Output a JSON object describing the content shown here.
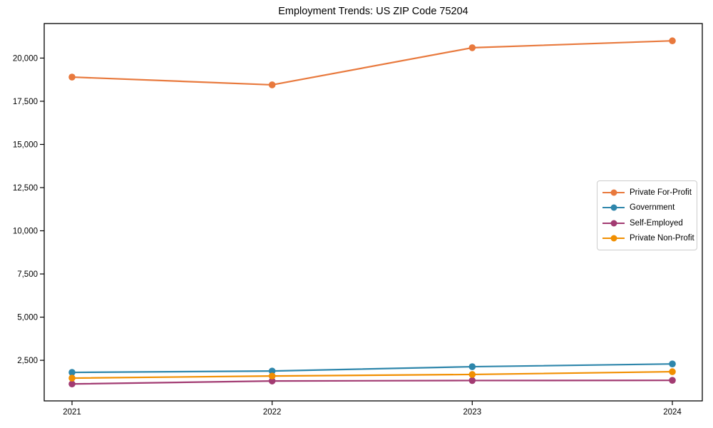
{
  "chart_data": {
    "type": "line",
    "title": "Employment Trends: US ZIP Code 75204",
    "xlabel": "",
    "ylabel": "",
    "categories": [
      "2021",
      "2022",
      "2023",
      "2024"
    ],
    "series": [
      {
        "name": "Private For-Profit",
        "color": "#E8793D",
        "values": [
          18900,
          18450,
          20600,
          21000
        ]
      },
      {
        "name": "Government",
        "color": "#2E86AB",
        "values": [
          1800,
          1880,
          2130,
          2290
        ]
      },
      {
        "name": "Self-Employed",
        "color": "#A23B72",
        "values": [
          1130,
          1300,
          1330,
          1340
        ]
      },
      {
        "name": "Private Non-Profit",
        "color": "#F18F01",
        "values": [
          1470,
          1590,
          1680,
          1840
        ]
      }
    ],
    "ylim": [
      150,
      22000
    ],
    "yticks": [
      2500,
      5000,
      7500,
      10000,
      12500,
      15000,
      17500,
      20000
    ],
    "ytick_labels": [
      "2,500",
      "5,000",
      "7,500",
      "10,000",
      "12,500",
      "15,000",
      "17,500",
      "20,000"
    ],
    "grid": false,
    "legend_position": "center-right",
    "axis_color": "#000000",
    "text_color": "#000000",
    "background_color": "#ffffff"
  }
}
